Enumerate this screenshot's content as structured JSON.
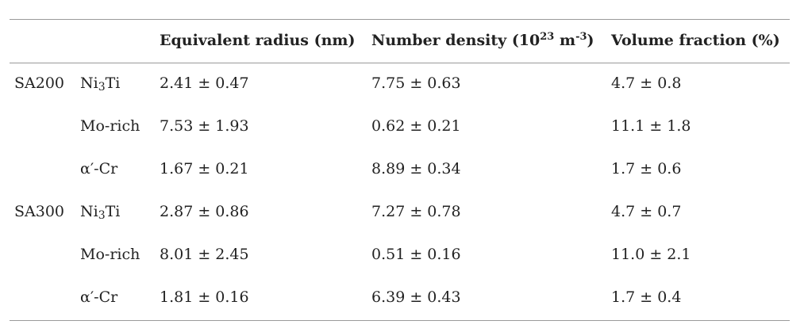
{
  "table": {
    "headers": [
      {
        "parts": [
          {
            "text": "Equivalent radius (nm)"
          }
        ]
      },
      {
        "parts": [
          {
            "text": "Number density (10"
          },
          {
            "text": "23",
            "sup": true
          },
          {
            "text": " m"
          },
          {
            "text": "-3",
            "sup": true
          },
          {
            "text": ")"
          }
        ]
      },
      {
        "parts": [
          {
            "text": "Volume fraction (%)"
          }
        ]
      }
    ],
    "groups": [
      {
        "sample": "SA200",
        "rows": [
          {
            "phase": [
              {
                "text": "Ni"
              },
              {
                "text": "3",
                "sub": true
              },
              {
                "text": "Ti"
              }
            ],
            "values": [
              "2.41 ± 0.47",
              "7.75 ± 0.63",
              "4.7 ± 0.8"
            ]
          },
          {
            "phase": [
              {
                "text": "Mo-rich"
              }
            ],
            "values": [
              "7.53 ± 1.93",
              "0.62 ± 0.21",
              "11.1 ± 1.8"
            ]
          },
          {
            "phase": [
              {
                "text": "α′-Cr"
              }
            ],
            "values": [
              "1.67 ± 0.21",
              "8.89 ± 0.34",
              "1.7 ± 0.6"
            ]
          }
        ]
      },
      {
        "sample": "SA300",
        "rows": [
          {
            "phase": [
              {
                "text": "Ni"
              },
              {
                "text": "3",
                "sub": true
              },
              {
                "text": "Ti"
              }
            ],
            "values": [
              "2.87 ± 0.86",
              "7.27 ± 0.78",
              "4.7 ± 0.7"
            ]
          },
          {
            "phase": [
              {
                "text": "Mo-rich"
              }
            ],
            "values": [
              "8.01 ± 2.45",
              "0.51 ± 0.16",
              "11.0 ± 2.1"
            ]
          },
          {
            "phase": [
              {
                "text": "α′-Cr"
              }
            ],
            "values": [
              "1.81 ± 0.16",
              "6.39 ± 0.43",
              "1.7 ± 0.4"
            ]
          }
        ]
      }
    ]
  }
}
